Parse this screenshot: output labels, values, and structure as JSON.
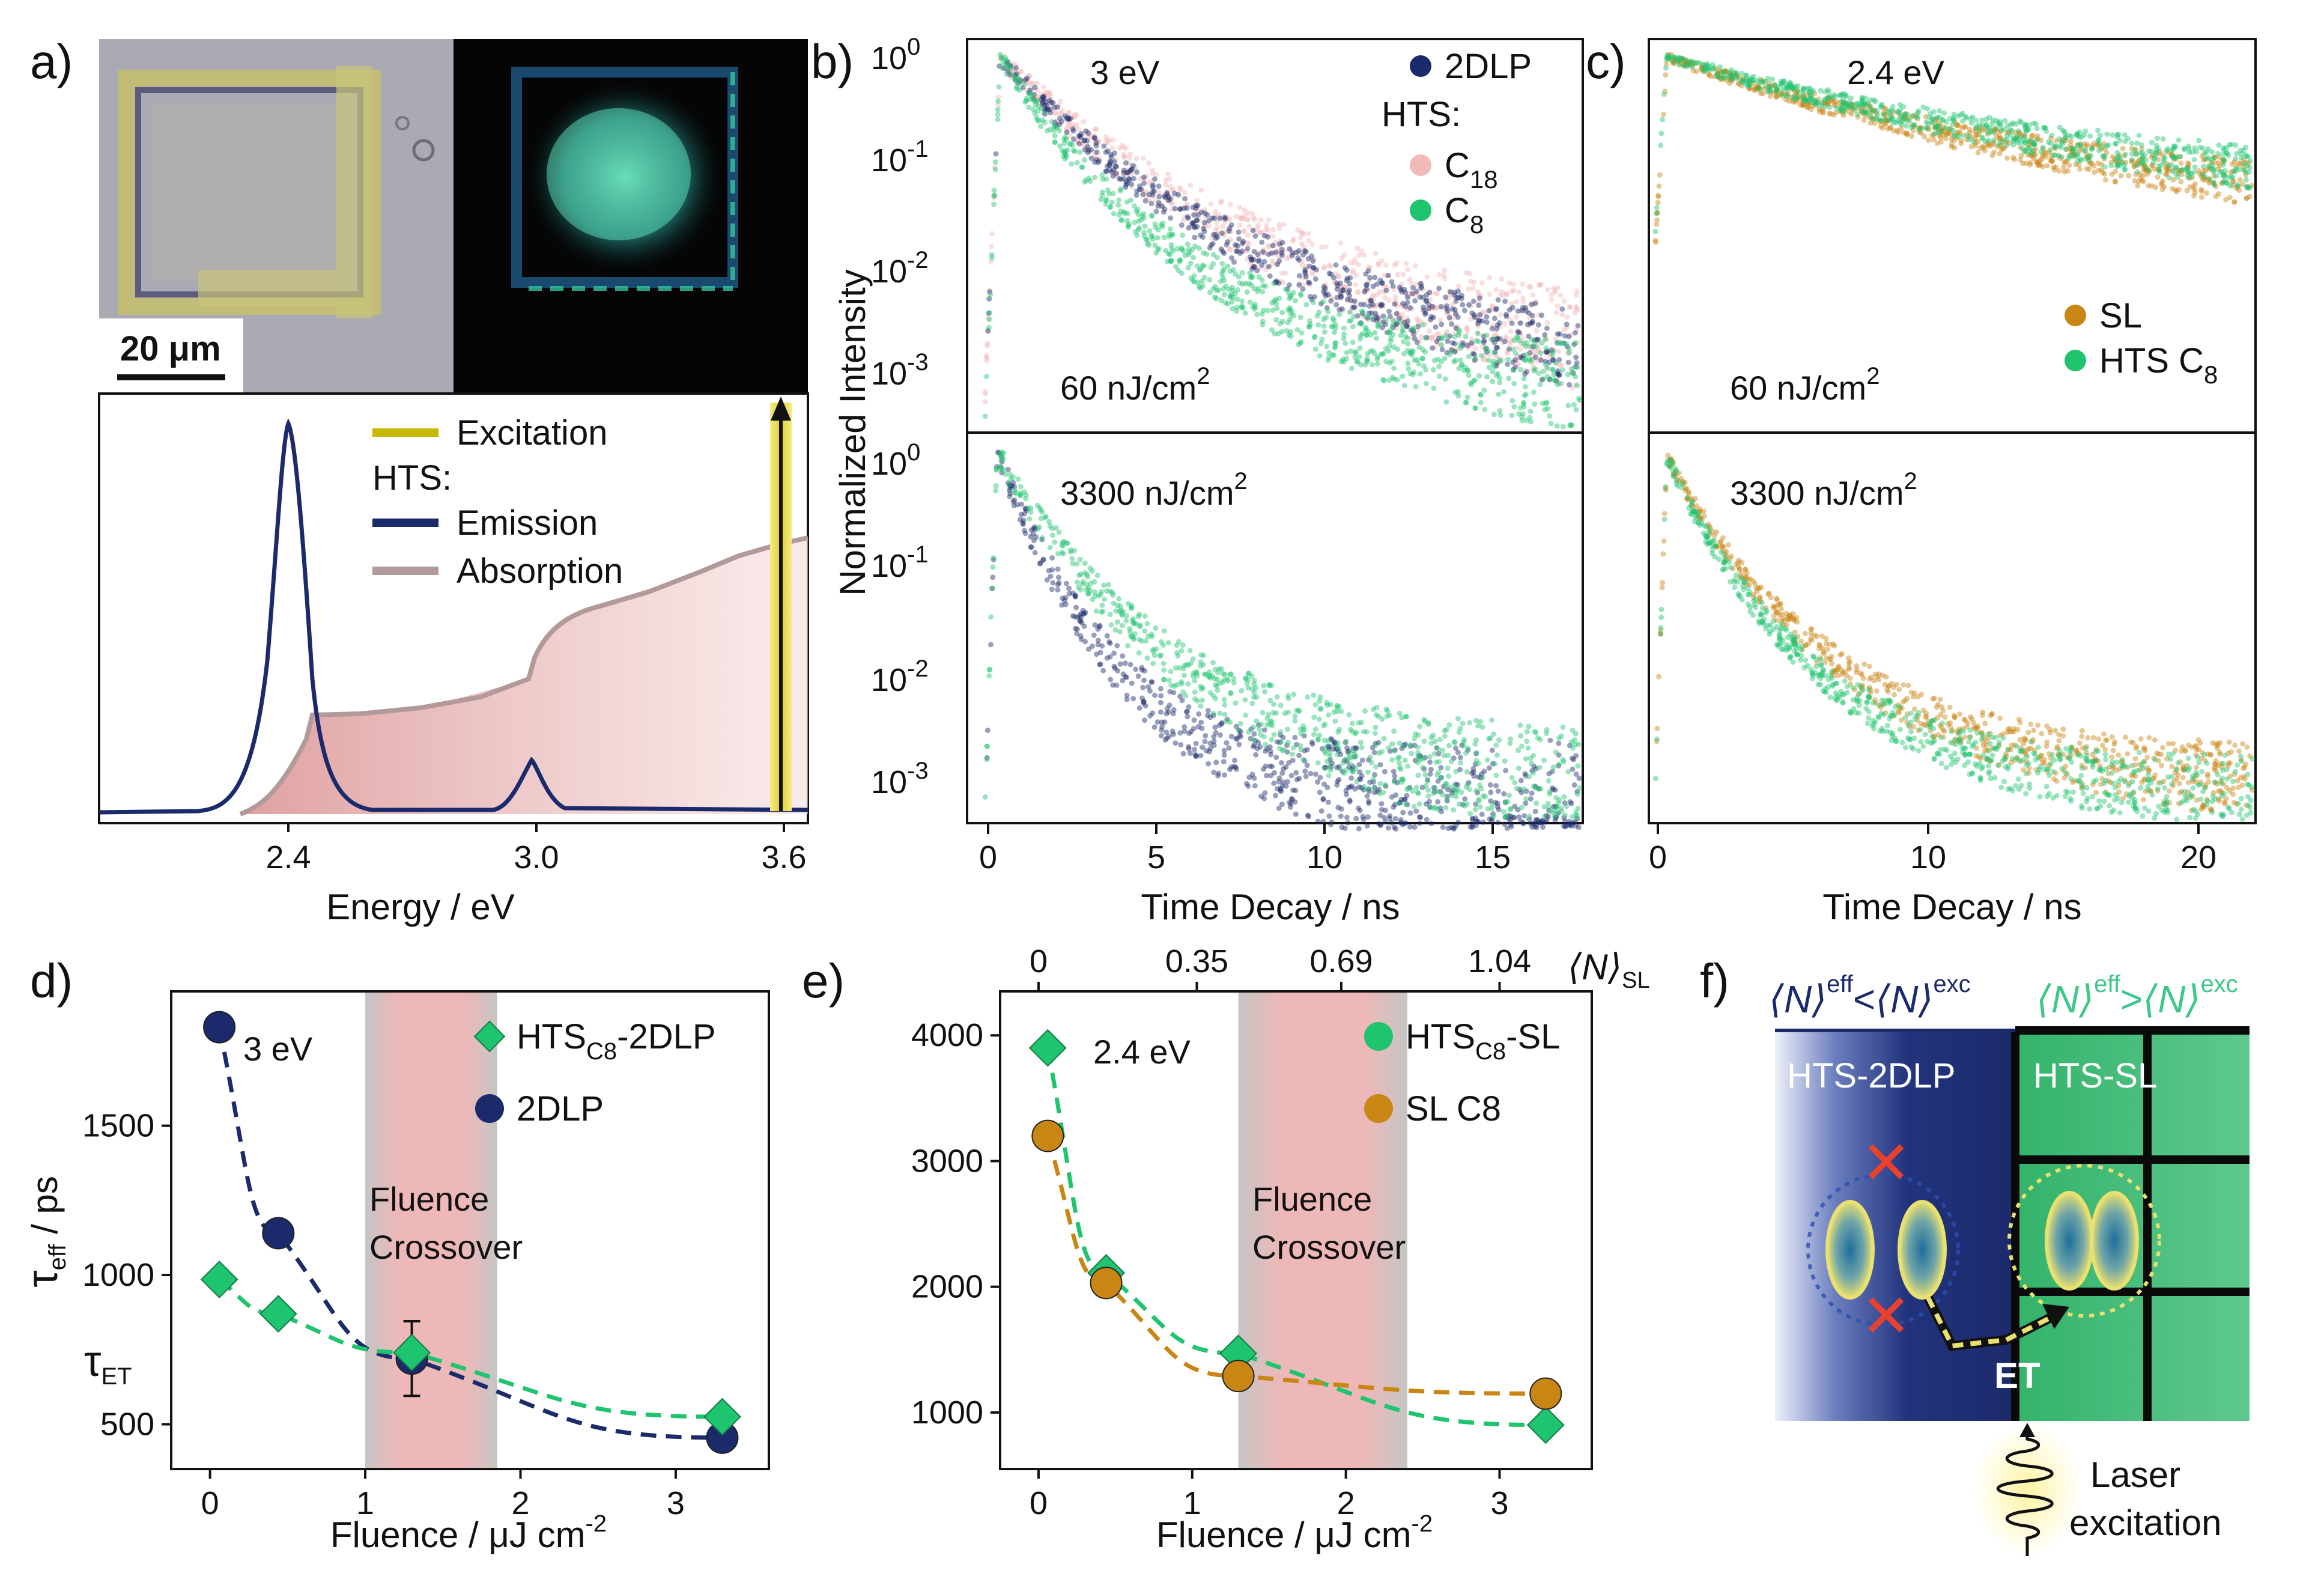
{
  "panels": {
    "a": {
      "letter": "a)"
    },
    "b": {
      "letter": "b)"
    },
    "c": {
      "letter": "c)"
    },
    "d": {
      "letter": "d)"
    },
    "e": {
      "letter": "e)"
    },
    "f": {
      "letter": "f)"
    }
  },
  "colors": {
    "navy": "#1b2a6b",
    "green": "#1fc46f",
    "pink": "#f2b9b9",
    "orange": "#c98614",
    "excitation": "#c9b800",
    "absorption": "#b39a9a",
    "crossover": "#e39a9a"
  },
  "panel_a": {
    "scale_bar": "20 μm",
    "xlabel": "Energy / eV",
    "xticks": [
      "2.4",
      "3.0",
      "3.6"
    ],
    "legend": {
      "excitation": "Excitation",
      "hts": "HTS:",
      "emission": "Emission",
      "absorption": "Absorption"
    }
  },
  "panel_b": {
    "energy_top": "3 eV",
    "fluence_top": "60 nJ/cm",
    "fluence_bottom": "3300 nJ/cm",
    "superscript2": "2",
    "ylabel": "Normalized Intensity",
    "xlabel": "Time Decay / ns",
    "xticks": [
      "0",
      "5",
      "10",
      "15"
    ],
    "yticks_base": "10",
    "yticks_exp": [
      "0",
      "-1",
      "-2",
      "-3"
    ],
    "legend": {
      "s1": "2DLP",
      "hts": "HTS:",
      "s2_base": "C",
      "s2_sub": "18",
      "s3_base": "C",
      "s3_sub": "8"
    }
  },
  "panel_c": {
    "energy_top": "2.4 eV",
    "fluence_top": "60 nJ/cm",
    "fluence_bottom": "3300 nJ/cm",
    "superscript2": "2",
    "xlabel": "Time Decay / ns",
    "xticks": [
      "0",
      "10",
      "20"
    ],
    "legend": {
      "s1": "SL",
      "s2_base": "HTS C",
      "s2_sub": "8"
    }
  },
  "chart_data": [
    {
      "type": "scatter",
      "panel": "d",
      "energy_label": "3 eV",
      "xlabel": "Fluence / μJ cm",
      "xlabel_sup": "-2",
      "ylabel_base": "τ",
      "ylabel_sub": "eff",
      "ylabel_unit": " / ps",
      "tau_et_base": "τ",
      "tau_et_sub": "ET",
      "xlim": [
        -0.25,
        3.6
      ],
      "ylim": [
        350,
        1950
      ],
      "xticks": [
        0,
        1,
        2,
        3
      ],
      "yticks": [
        500,
        1000,
        1500
      ],
      "crossover": {
        "range": [
          1.0,
          1.85
        ],
        "label_line1": "Fluence",
        "label_line2": "Crossover"
      },
      "series": [
        {
          "name": "2DLP",
          "marker": "circle",
          "color": "#1b2a6b",
          "x": [
            0.06,
            0.44,
            1.3,
            3.3
          ],
          "y": [
            1830,
            1140,
            720,
            455
          ],
          "yerr": [
            null,
            null,
            125,
            null
          ]
        },
        {
          "name_base": "HTS",
          "name_sub": "C8",
          "name_tail": "-2DLP",
          "marker": "diamond",
          "color": "#1fc46f",
          "x": [
            0.06,
            0.44,
            1.3,
            3.3
          ],
          "y": [
            985,
            870,
            740,
            525
          ]
        }
      ]
    },
    {
      "type": "scatter",
      "panel": "e",
      "energy_label": "2.4 eV",
      "xlabel": "Fluence / μJ cm",
      "xlabel_sup": "-2",
      "xlim": [
        -0.25,
        3.6
      ],
      "ylim": [
        550,
        4350
      ],
      "xticks": [
        0,
        1,
        2,
        3
      ],
      "yticks": [
        1000,
        2000,
        3000,
        4000
      ],
      "top_axis": {
        "label_base": "⟨N⟩",
        "label_sub": "SL",
        "ticks": [
          "0",
          "0.35",
          "0.69",
          "1.04"
        ],
        "tick_positions": [
          0,
          1.03,
          1.97,
          3.0
        ]
      },
      "crossover": {
        "range": [
          1.3,
          2.4
        ],
        "label_line1": "Fluence",
        "label_line2": "Crossover"
      },
      "series": [
        {
          "name_base": "HTS",
          "name_sub": "C8",
          "name_tail": "-SL",
          "marker": "diamond",
          "color": "#1fc46f",
          "x": [
            0.06,
            0.44,
            1.3,
            3.3
          ],
          "y": [
            3900,
            2110,
            1470,
            900
          ]
        },
        {
          "name": "SL C8",
          "marker": "circle",
          "color": "#c98614",
          "x": [
            0.06,
            0.44,
            1.3,
            3.3
          ],
          "y": [
            3200,
            2030,
            1290,
            1150
          ]
        }
      ]
    }
  ],
  "panel_f": {
    "left_label": "HTS-2DLP",
    "right_label": "HTS-SL",
    "et_label": "ET",
    "laser_line1": "Laser",
    "laser_line2": "excitation",
    "header_left": {
      "n": "⟨N⟩",
      "sup1": "eff",
      "rel": "<",
      "sup2": "exc"
    },
    "header_right": {
      "n": "⟨N⟩",
      "sup1": "eff",
      "rel": ">",
      "sup2": "exc"
    }
  }
}
